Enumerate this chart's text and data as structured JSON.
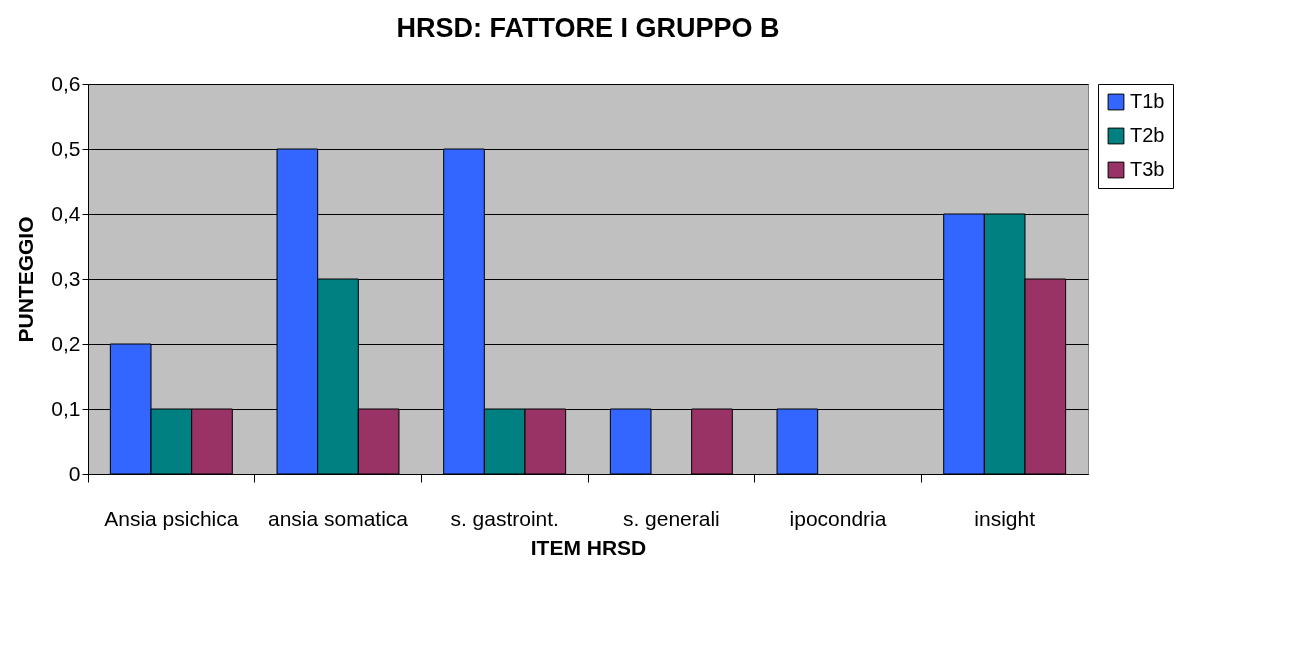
{
  "chart_data": {
    "type": "bar",
    "title": "HRSD: FATTORE I GRUPPO B",
    "xlabel": "ITEM HRSD",
    "ylabel": "PUNTEGGIO",
    "categories": [
      "Ansia psichica",
      "ansia somatica",
      "s. gastroint.",
      "s. generali",
      "ipocondria",
      "insight"
    ],
    "series": [
      {
        "name": "T1b",
        "color": "#3366ff",
        "values": [
          0.2,
          0.5,
          0.5,
          0.1,
          0.1,
          0.4
        ]
      },
      {
        "name": "T2b",
        "color": "#008080",
        "values": [
          0.1,
          0.3,
          0.1,
          0,
          0,
          0.4
        ]
      },
      {
        "name": "T3b",
        "color": "#993366",
        "values": [
          0.1,
          0.1,
          0.1,
          0.1,
          0,
          0.3
        ]
      }
    ],
    "ylim": [
      0,
      0.6
    ],
    "yticks": [
      0,
      {
        "value": 0.1,
        "label": "0,1"
      },
      {
        "value": 0.2,
        "label": "0,2"
      },
      {
        "value": 0.3,
        "label": "0,3"
      },
      {
        "value": 0.4,
        "label": "0,4"
      },
      {
        "value": 0.5,
        "label": "0,5"
      },
      {
        "value": 0.6,
        "label": "0,6"
      }
    ],
    "grid": "y",
    "legend": "right"
  }
}
